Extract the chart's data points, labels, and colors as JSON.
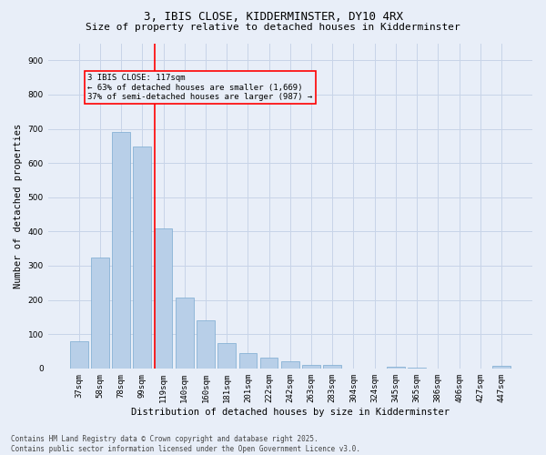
{
  "title_line1": "3, IBIS CLOSE, KIDDERMINSTER, DY10 4RX",
  "title_line2": "Size of property relative to detached houses in Kidderminster",
  "xlabel": "Distribution of detached houses by size in Kidderminster",
  "ylabel": "Number of detached properties",
  "categories": [
    "37sqm",
    "58sqm",
    "78sqm",
    "99sqm",
    "119sqm",
    "140sqm",
    "160sqm",
    "181sqm",
    "201sqm",
    "222sqm",
    "242sqm",
    "263sqm",
    "283sqm",
    "304sqm",
    "324sqm",
    "345sqm",
    "365sqm",
    "386sqm",
    "406sqm",
    "427sqm",
    "447sqm"
  ],
  "values": [
    78,
    323,
    690,
    647,
    410,
    207,
    140,
    75,
    46,
    32,
    20,
    11,
    10,
    0,
    0,
    6,
    3,
    0,
    0,
    0,
    7
  ],
  "bar_color": "#b8cfe8",
  "bar_edge_color": "#7aaad0",
  "vline_color": "red",
  "annotation_text": "3 IBIS CLOSE: 117sqm\n← 63% of detached houses are smaller (1,669)\n37% of semi-detached houses are larger (987) →",
  "annotation_box_color": "red",
  "ylim": [
    0,
    950
  ],
  "yticks": [
    0,
    100,
    200,
    300,
    400,
    500,
    600,
    700,
    800,
    900
  ],
  "grid_color": "#c8d4e8",
  "bg_color": "#e8eef8",
  "footer_text": "Contains HM Land Registry data © Crown copyright and database right 2025.\nContains public sector information licensed under the Open Government Licence v3.0.",
  "title_fontsize": 9,
  "subtitle_fontsize": 8,
  "axis_label_fontsize": 7.5,
  "tick_fontsize": 6.5,
  "annotation_fontsize": 6.5,
  "footer_fontsize": 5.5,
  "vline_bar_index": 4
}
